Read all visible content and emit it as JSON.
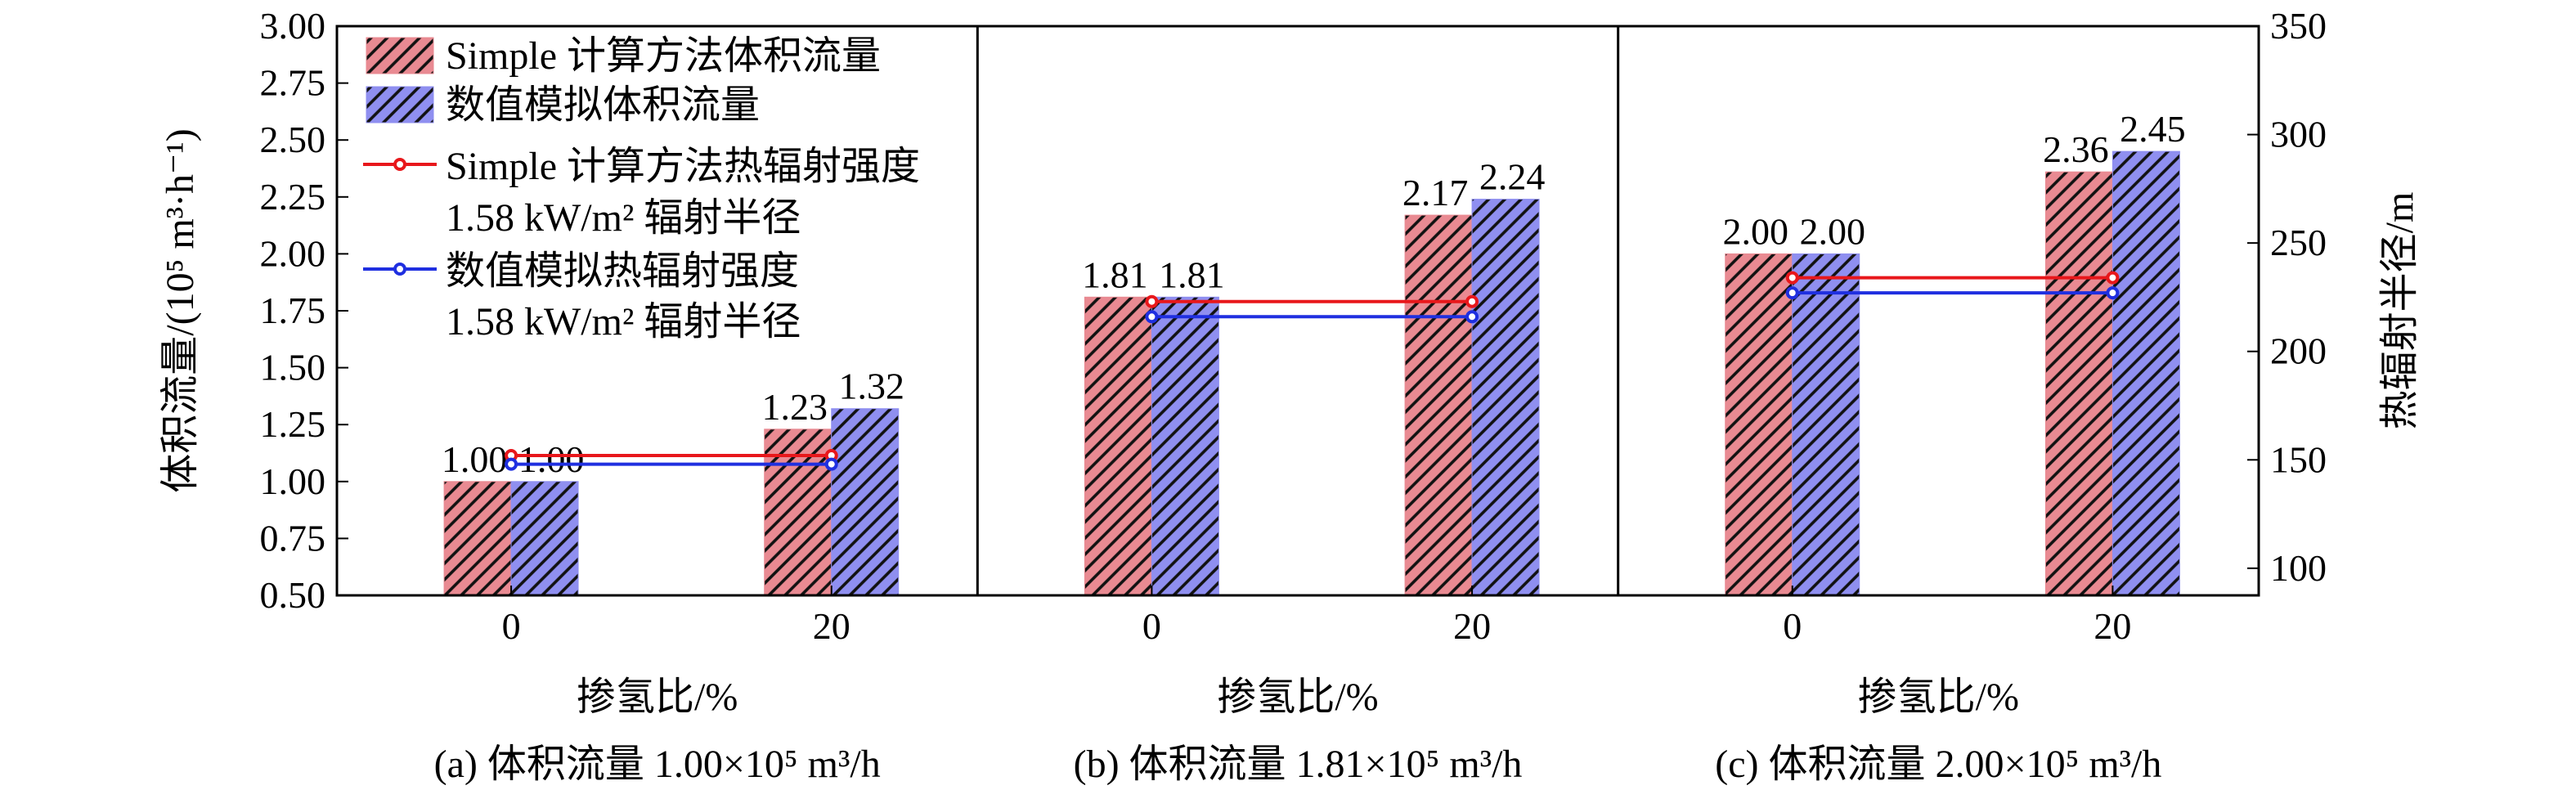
{
  "colors": {
    "simple_bar": "#e98a92",
    "numeric_bar": "#8f8ff0",
    "simple_line": "#e8171b",
    "numeric_line": "#1f2fe0"
  },
  "chart_data": {
    "type": "bar",
    "left_axis": {
      "label": "体积流量/(10⁵ m³·h⁻¹)",
      "ylim": [
        0.5,
        3.0
      ],
      "ticks": [
        "0.50",
        "0.75",
        "1.00",
        "1.25",
        "1.50",
        "1.75",
        "2.00",
        "2.25",
        "2.50",
        "2.75",
        "3.00"
      ]
    },
    "right_axis": {
      "label": "热辐射半径/m",
      "ylim": [
        87.5,
        350
      ],
      "ticks": [
        "100",
        "150",
        "200",
        "250",
        "300",
        "350"
      ]
    },
    "legend": {
      "position": "top-left",
      "entries": [
        {
          "label": "Simple 计算方法体积流量",
          "kind": "bar"
        },
        {
          "label": "数值模拟体积流量",
          "kind": "bar"
        },
        {
          "label": "Simple 计算方法热辐射强度",
          "kind": "line"
        },
        {
          "label": "1.58 kW/m² 辐射半径",
          "kind": "text"
        },
        {
          "label": "数值模拟热辐射强度",
          "kind": "line"
        },
        {
          "label": "1.58 kW/m² 辐射半径",
          "kind": "text"
        }
      ]
    },
    "panels": [
      {
        "xlabel": "掺氢比/%",
        "caption": "(a) 体积流量 1.00×10⁵ m³/h",
        "categories": [
          "0",
          "20"
        ],
        "series": [
          {
            "name": "Simple 计算方法体积流量",
            "type": "bar",
            "axis": "left",
            "values": [
              1.0,
              1.23
            ],
            "labels": [
              "1.00",
              "1.23"
            ]
          },
          {
            "name": "数值模拟体积流量",
            "type": "bar",
            "axis": "left",
            "values": [
              1.0,
              1.32
            ],
            "labels": [
              "1.00",
              "1.32"
            ]
          },
          {
            "name": "Simple 计算方法热辐射强度 1.58 kW/m² 辐射半径",
            "type": "line",
            "axis": "right",
            "values": [
              152,
              152
            ]
          },
          {
            "name": "数值模拟热辐射强度 1.58 kW/m² 辐射半径",
            "type": "line",
            "axis": "right",
            "values": [
              148,
              148
            ]
          }
        ]
      },
      {
        "xlabel": "掺氢比/%",
        "caption": "(b) 体积流量 1.81×10⁵ m³/h",
        "categories": [
          "0",
          "20"
        ],
        "series": [
          {
            "name": "Simple 计算方法体积流量",
            "type": "bar",
            "axis": "left",
            "values": [
              1.81,
              2.17
            ],
            "labels": [
              "1.81",
              "2.17"
            ]
          },
          {
            "name": "数值模拟体积流量",
            "type": "bar",
            "axis": "left",
            "values": [
              1.81,
              2.24
            ],
            "labels": [
              "1.81",
              "2.24"
            ]
          },
          {
            "name": "Simple 计算方法热辐射强度 1.58 kW/m² 辐射半径",
            "type": "line",
            "axis": "right",
            "values": [
              223,
              223
            ]
          },
          {
            "name": "数值模拟热辐射强度 1.58 kW/m² 辐射半径",
            "type": "line",
            "axis": "right",
            "values": [
              216,
              216
            ]
          }
        ]
      },
      {
        "xlabel": "掺氢比/%",
        "caption": "(c) 体积流量 2.00×10⁵ m³/h",
        "categories": [
          "0",
          "20"
        ],
        "series": [
          {
            "name": "Simple 计算方法体积流量",
            "type": "bar",
            "axis": "left",
            "values": [
              2.0,
              2.36
            ],
            "labels": [
              "2.00",
              "2.36"
            ]
          },
          {
            "name": "数值模拟体积流量",
            "type": "bar",
            "axis": "left",
            "values": [
              2.0,
              2.45
            ],
            "labels": [
              "2.00",
              "2.45"
            ]
          },
          {
            "name": "Simple 计算方法热辐射强度 1.58 kW/m² 辐射半径",
            "type": "line",
            "axis": "right",
            "values": [
              234,
              234
            ]
          },
          {
            "name": "数值模拟热辐射强度 1.58 kW/m² 辐射半径",
            "type": "line",
            "axis": "right",
            "values": [
              227,
              227
            ]
          }
        ]
      }
    ]
  }
}
